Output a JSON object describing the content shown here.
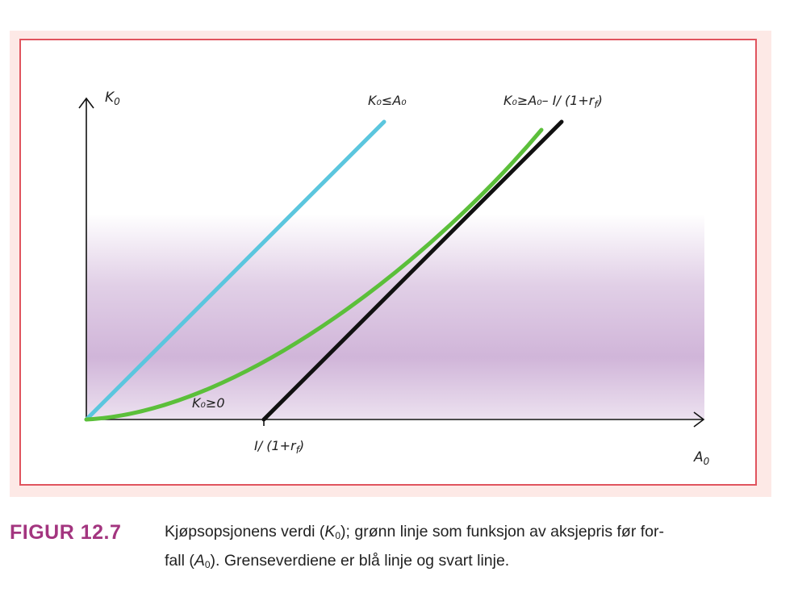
{
  "figure": {
    "y_axis_label": {
      "main": "K",
      "sub": "0"
    },
    "x_axis_label": {
      "main": "A",
      "sub": "0"
    },
    "x_tick_label": "I/ (1+r",
    "x_tick_sub": "f",
    "x_tick_close": ")",
    "label_blue": "K₀≤A₀",
    "label_black": "K₀≥A₀– I/ (1+r",
    "label_black_sub": "f",
    "label_black_close": ")",
    "label_green": "K₀≥0",
    "colors": {
      "blue_line": "#5bc6de",
      "green_curve": "#5bbf3a",
      "black_line": "#111111",
      "shading": "#c8a8d2",
      "frame": "#e0545e",
      "panel": "#fde9e6"
    }
  },
  "caption": {
    "label": "FIGUR 12.7",
    "line1_part1": "Kjøpsopsjonens verdi (",
    "line1_var": "K",
    "line1_sub": "0",
    "line1_part2": "); grønn linje som funksjon av aksjepris før for-",
    "line2_part1": "fall (",
    "line2_var": "A",
    "line2_sub": "0",
    "line2_part2": "). Grenseverdiene er blå linje og svart linje."
  }
}
